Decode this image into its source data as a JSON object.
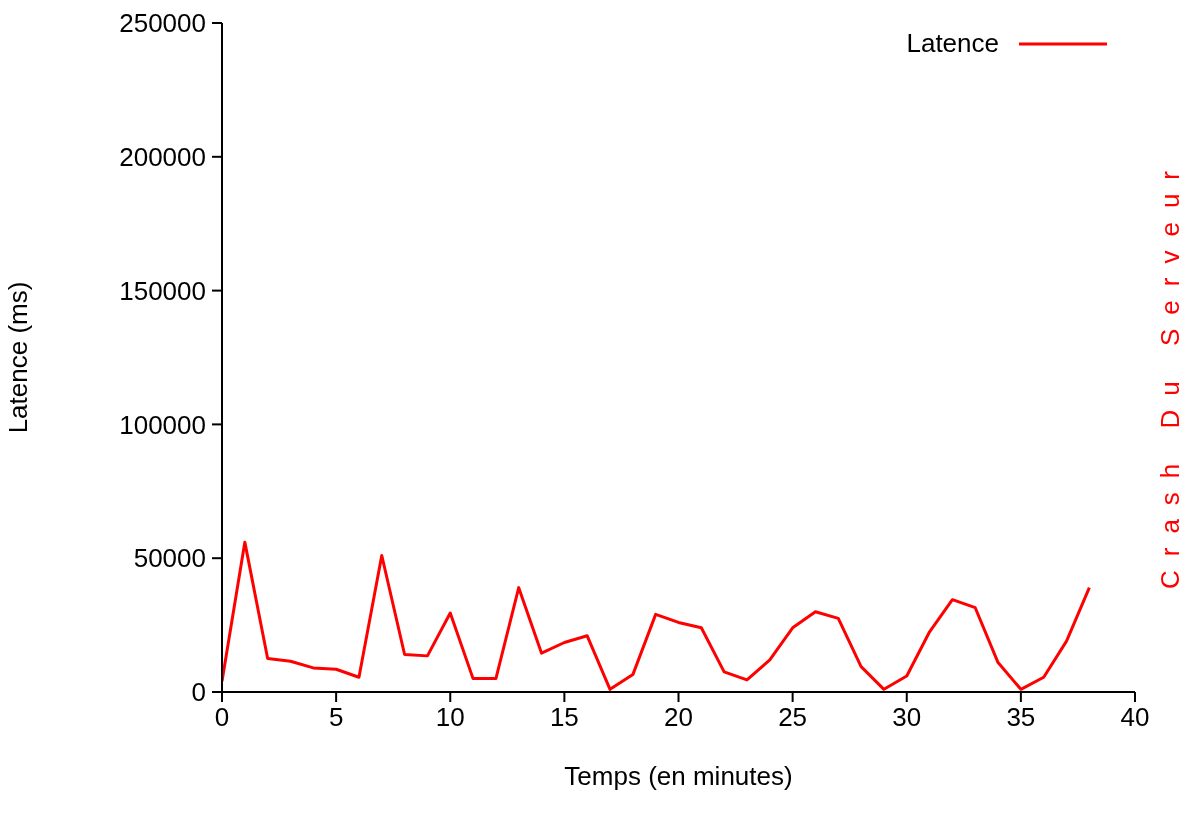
{
  "chart_data": {
    "type": "line",
    "xlabel": "Temps (en minutes)",
    "ylabel": "Latence (ms)",
    "y2label": "Crash Du Serveur",
    "x": [
      0,
      1,
      2,
      3,
      4,
      5,
      6,
      7,
      8,
      9,
      10,
      11,
      12,
      13,
      14,
      15,
      16,
      17,
      18,
      19,
      20,
      21,
      22,
      23,
      24,
      25,
      26,
      27,
      28,
      29,
      30,
      31,
      32,
      33,
      34,
      35,
      36,
      37,
      38
    ],
    "series": [
      {
        "name": "Latence",
        "color": "#ff0000",
        "values": [
          4000,
          56000,
          12500,
          11500,
          9000,
          8500,
          5500,
          51000,
          14000,
          13500,
          29500,
          5000,
          5000,
          39000,
          14500,
          18500,
          21000,
          1000,
          6500,
          29000,
          26000,
          24000,
          7500,
          4500,
          12000,
          24000,
          30000,
          27500,
          9500,
          1000,
          6000,
          22500,
          34500,
          31500,
          11000,
          1000,
          5500,
          19000,
          39000
        ]
      }
    ],
    "xlim": [
      0,
      40
    ],
    "xticks": [
      0,
      5,
      10,
      15,
      20,
      25,
      30,
      35,
      40
    ],
    "ylim": [
      0,
      250000
    ],
    "yticks": [
      0,
      50000,
      100000,
      150000,
      200000,
      250000
    ],
    "grid": false,
    "legend": "top right",
    "marker": "none",
    "line_style": "solid"
  }
}
